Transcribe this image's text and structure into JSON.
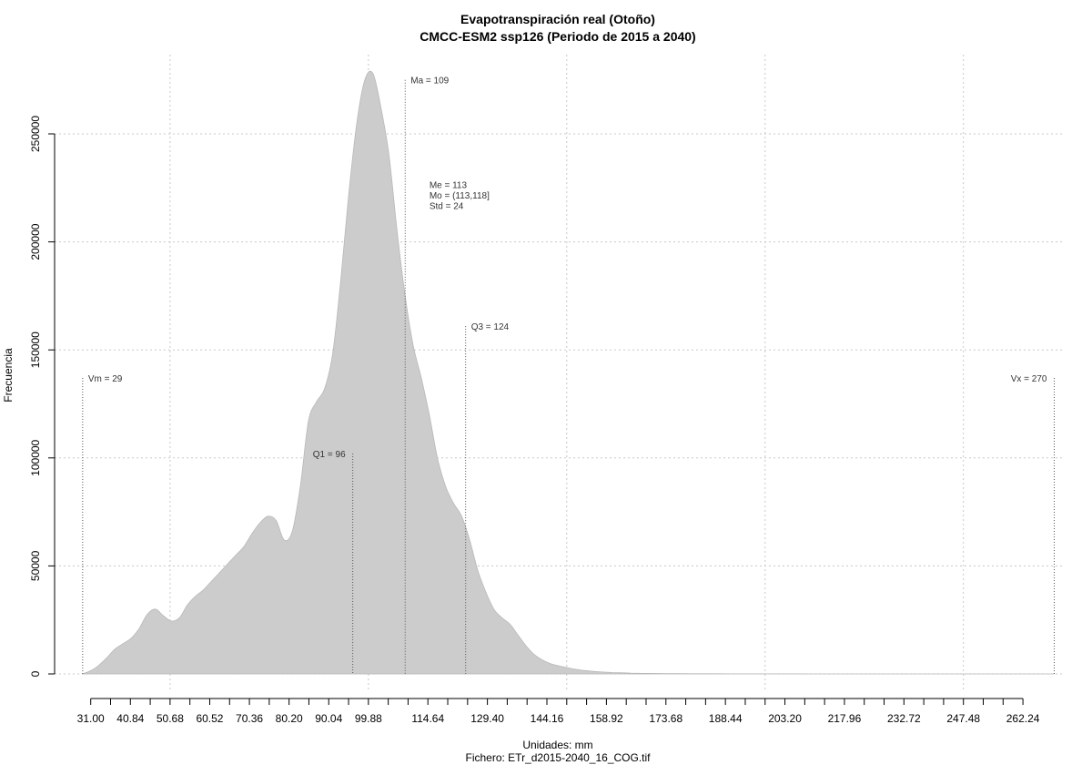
{
  "chart_data": {
    "type": "area",
    "title": "Evapotranspiración real (Otoño)",
    "subtitle": "CMCC-ESM2 ssp126 (Periodo de 2015 a 2040)",
    "xlabel": "Unidades: mm",
    "ylabel": "Frecuencia",
    "caption": "Fichero: ETr_d2015-2040_16_COG.tif",
    "xlim": [
      25,
      276
    ],
    "ylim": [
      0,
      290000
    ],
    "x_ticks": [
      31.0,
      40.84,
      50.68,
      60.52,
      70.36,
      80.2,
      90.04,
      99.88,
      114.64,
      129.4,
      144.16,
      158.92,
      173.68,
      188.44,
      203.2,
      217.96,
      232.72,
      247.48,
      262.24
    ],
    "x_tick_labels": [
      "31.00",
      "40.84",
      "50.68",
      "60.52",
      "70.36",
      "80.20",
      "90.04",
      "99.88",
      "114.64",
      "129.40",
      "144.16",
      "158.92",
      "173.68",
      "188.44",
      "203.20",
      "217.96",
      "232.72",
      "247.48",
      "262.24"
    ],
    "x_minor_step": 4.92,
    "y_ticks": [
      0,
      50000,
      100000,
      150000,
      200000,
      250000
    ],
    "y_tick_labels": [
      "0",
      "50000",
      "100000",
      "150000",
      "200000",
      "250000"
    ],
    "x_grid": [
      50.68,
      99.88,
      149.08,
      198.28,
      247.48
    ],
    "grid": true,
    "fill_color": "#cccccc",
    "density": {
      "x": [
        29,
        31,
        33,
        35,
        37,
        39,
        41,
        43,
        45,
        47,
        49,
        51,
        53,
        55,
        57,
        59,
        61,
        63,
        65,
        67,
        69,
        71,
        73,
        75,
        77,
        79,
        81,
        83,
        85,
        87,
        89,
        91,
        93,
        95,
        97,
        99,
        101,
        103,
        105,
        107,
        109,
        111,
        113,
        115,
        117,
        119,
        121,
        123,
        125,
        127,
        129,
        131,
        133,
        135,
        137,
        139,
        141,
        143,
        145,
        147,
        149,
        151,
        153,
        155,
        157,
        159,
        161,
        163,
        165,
        167,
        169,
        172,
        176,
        180,
        185,
        190,
        195,
        200,
        210,
        220,
        235,
        250,
        270
      ],
      "y": [
        0,
        1500,
        4000,
        7500,
        11500,
        14000,
        16500,
        21000,
        27500,
        30000,
        27000,
        24500,
        26000,
        32000,
        36000,
        39000,
        43000,
        47000,
        51000,
        55000,
        59000,
        65000,
        70000,
        73000,
        71000,
        62000,
        66000,
        87000,
        117000,
        126000,
        132000,
        148000,
        182000,
        222000,
        255000,
        275000,
        278000,
        262000,
        240000,
        205000,
        175000,
        152000,
        137000,
        120000,
        100000,
        87000,
        79000,
        73000,
        62000,
        48000,
        38000,
        30000,
        26000,
        23000,
        18000,
        13000,
        9000,
        6500,
        4800,
        3800,
        3000,
        2200,
        1700,
        1300,
        1000,
        800,
        600,
        500,
        400,
        300,
        250,
        200,
        150,
        100,
        80,
        60,
        40,
        30,
        20,
        10,
        5,
        2,
        0
      ]
    },
    "markers": [
      {
        "label": "Vm = 29",
        "x": 29,
        "label_y": 137000,
        "line_top": 137000,
        "align": "start"
      },
      {
        "label": "Q1 = 96",
        "x": 96,
        "label_y": 102000,
        "line_top": 102000,
        "align": "end"
      },
      {
        "label": "Ma = 109",
        "x": 109,
        "label_y": 275000,
        "line_top": 275000,
        "align": "start"
      },
      {
        "label": "Q3 = 124",
        "x": 124,
        "label_y": 161000,
        "line_top": 161000,
        "align": "start"
      },
      {
        "label": "Vx = 270",
        "x": 270,
        "label_y": 137000,
        "line_top": 137000,
        "align": "end"
      }
    ],
    "stats": [
      "Me = 113",
      "Mo = (113,118]",
      "Std = 24"
    ],
    "stats_anchor": {
      "x": 115,
      "y": 225000
    }
  }
}
